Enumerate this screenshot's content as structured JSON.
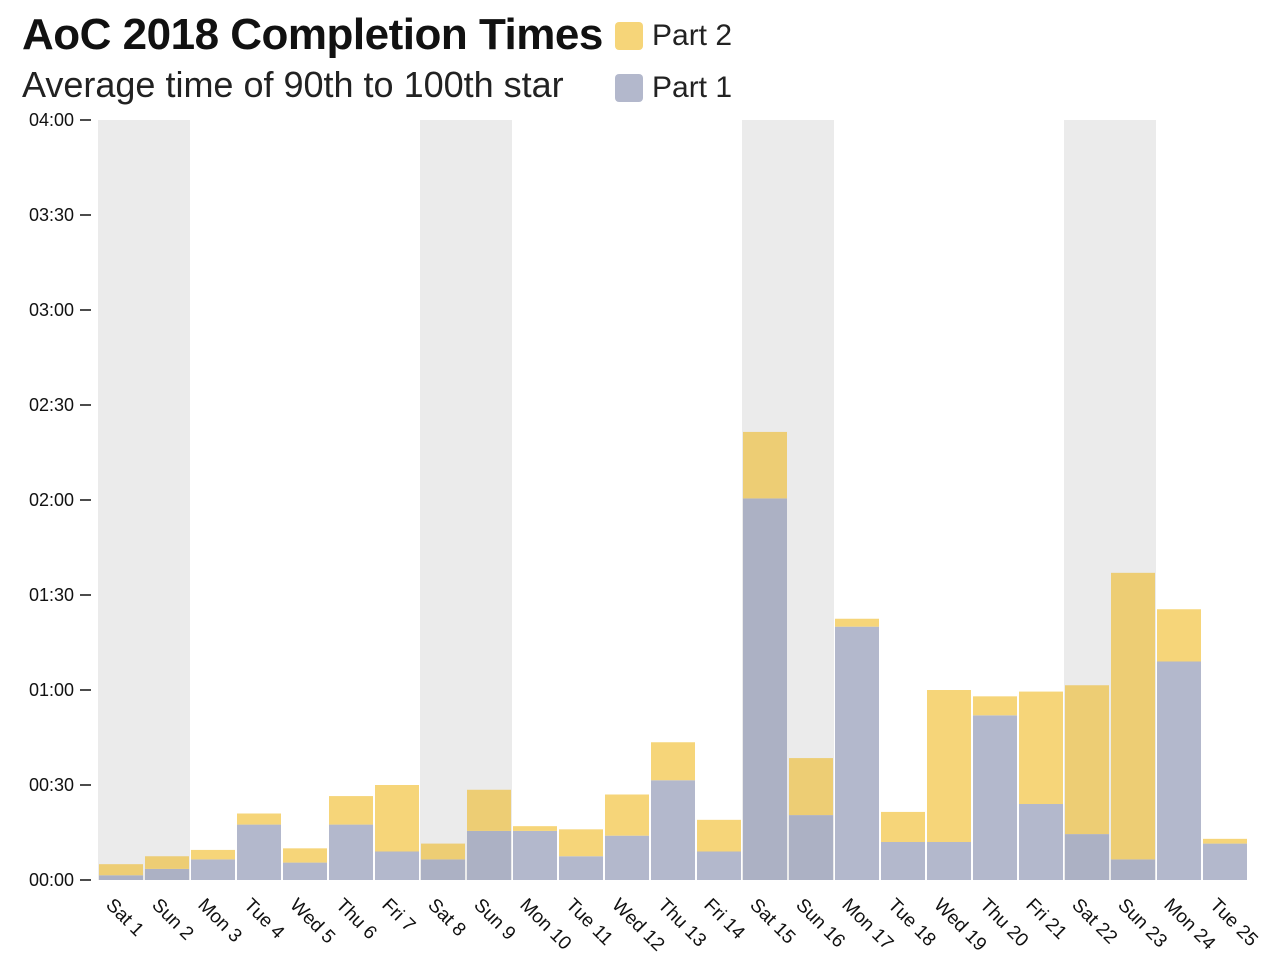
{
  "chart_data": {
    "type": "bar",
    "stacked": true,
    "title": "AoC 2018 Completion Times",
    "subtitle": "Average time of 90th to 100th star",
    "xlabel": "",
    "ylabel": "",
    "ylim": [
      0,
      240
    ],
    "y_ticks": [
      0,
      30,
      60,
      90,
      120,
      150,
      180,
      210,
      240
    ],
    "y_tick_labels": [
      "00:00",
      "00:30",
      "01:00",
      "01:30",
      "02:00",
      "02:30",
      "03:00",
      "03:30",
      "04:00"
    ],
    "categories": [
      "Sat 1",
      "Sun 2",
      "Mon 3",
      "Tue 4",
      "Wed 5",
      "Thu 6",
      "Fri 7",
      "Sat 8",
      "Sun 9",
      "Mon 10",
      "Tue 11",
      "Wed 12",
      "Thu 13",
      "Fri 14",
      "Sat 15",
      "Sun 16",
      "Mon 17",
      "Tue 18",
      "Wed 19",
      "Thu 20",
      "Fri 21",
      "Sat 22",
      "Sun 23",
      "Mon 24",
      "Tue 25"
    ],
    "weekend_categories": [
      "Sat 1",
      "Sun 2",
      "Sat 8",
      "Sun 9",
      "Sat 15",
      "Sun 16",
      "Sat 22",
      "Sun 23"
    ],
    "series": [
      {
        "name": "Part 1",
        "color": "#b3b8cc",
        "values": [
          1.5,
          3.5,
          6.5,
          17.5,
          5.5,
          17.5,
          9,
          6.5,
          15.5,
          15.5,
          7.5,
          14,
          31.5,
          9,
          120.5,
          20.5,
          80,
          12,
          12,
          52,
          24,
          14.5,
          6.5,
          69,
          11.5
        ]
      },
      {
        "name": "Part 2",
        "color": "#f6d579",
        "values": [
          3.5,
          4,
          3,
          3.5,
          4.5,
          9,
          21,
          5,
          13,
          1.5,
          8.5,
          13,
          12,
          10,
          21,
          18,
          2.5,
          9.5,
          48,
          6,
          35.5,
          47,
          90.5,
          16.5,
          1.5
        ]
      }
    ],
    "legend": [
      {
        "name": "Part 2",
        "color": "#f6d579"
      },
      {
        "name": "Part 1",
        "color": "#b3b8cc"
      }
    ],
    "legend_position": "top-right of title",
    "grid": false
  }
}
